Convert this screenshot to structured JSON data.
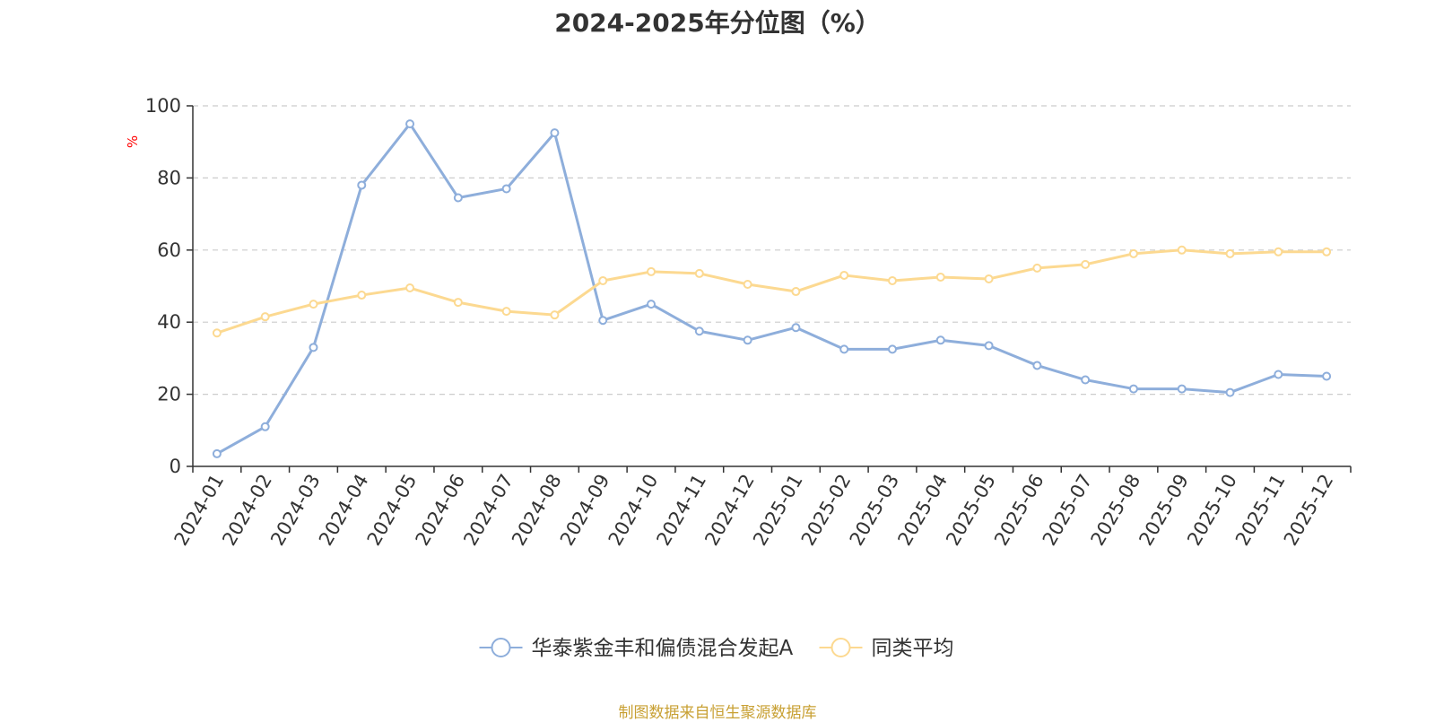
{
  "chart_data": {
    "type": "line",
    "title": "2024-2025年分位图（%）",
    "ylabel": "%",
    "xlabel": "",
    "ylim": [
      0,
      100
    ],
    "yticks": [
      0,
      20,
      40,
      60,
      80,
      100
    ],
    "grid": true,
    "legend_position": "bottom",
    "categories": [
      "2024-01",
      "2024-02",
      "2024-03",
      "2024-04",
      "2024-05",
      "2024-06",
      "2024-07",
      "2024-08",
      "2024-09",
      "2024-10",
      "2024-11",
      "2024-12",
      "2025-01",
      "2025-02",
      "2025-03",
      "2025-04",
      "2025-05",
      "2025-06",
      "2025-07",
      "2025-08",
      "2025-09",
      "2025-10",
      "2025-11",
      "2025-12"
    ],
    "series": [
      {
        "name": "华泰紫金丰和偏债混合发起A",
        "color": "#8eaedb",
        "values": [
          3.5,
          11,
          33,
          78,
          95,
          74.5,
          77,
          92.5,
          40.5,
          45,
          37.5,
          35,
          38.5,
          32.5,
          32.5,
          35,
          33.5,
          28,
          24,
          21.5,
          21.5,
          20.5,
          25.5,
          25
        ]
      },
      {
        "name": "同类平均",
        "color": "#fcd991",
        "values": [
          37,
          41.5,
          45,
          47.5,
          49.5,
          45.5,
          43,
          42,
          51.5,
          54,
          53.5,
          50.5,
          48.5,
          53,
          51.5,
          52.5,
          52,
          55,
          56,
          59,
          60,
          59,
          59.5,
          59.5
        ]
      }
    ],
    "source_note": "制图数据来自恒生聚源数据库",
    "colors": {
      "axis": "#333333",
      "grid": "#cccccc",
      "unit_label": "#ff0000",
      "source_note": "#c8a033"
    }
  }
}
